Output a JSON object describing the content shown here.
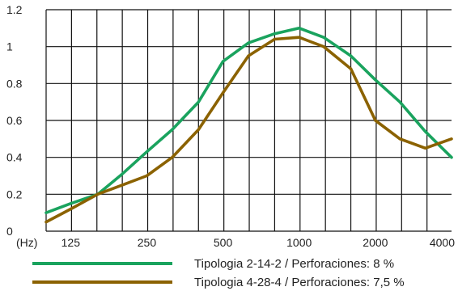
{
  "chart_data": {
    "type": "line",
    "x_unit_label": "(Hz)",
    "x_ticks": [
      "125",
      "250",
      "500",
      "1000",
      "2000",
      "4000"
    ],
    "x_scale": "log2",
    "xlim": [
      100,
      4000
    ],
    "ylim": [
      0,
      1.2
    ],
    "y_ticks": [
      "0",
      "0.2",
      "0.4",
      "0.6",
      "0.8",
      "1",
      "1.2"
    ],
    "grid": true,
    "legend_placement": "bottom",
    "series": [
      {
        "name": "Tipologia 2-14-2  / Perforaciones: 8 %",
        "color": "#1aa35e",
        "x": [
          100,
          125,
          160,
          200,
          250,
          315,
          400,
          500,
          630,
          800,
          1000,
          1250,
          1600,
          2000,
          2500,
          3150,
          4000
        ],
        "y": [
          0.1,
          0.15,
          0.2,
          0.31,
          0.43,
          0.55,
          0.7,
          0.92,
          1.02,
          1.07,
          1.1,
          1.05,
          0.95,
          0.82,
          0.7,
          0.54,
          0.4
        ]
      },
      {
        "name": "Tipologia 4-28-4  / Perforaciones: 7,5 %",
        "color": "#8b6200",
        "x": [
          100,
          125,
          160,
          200,
          250,
          315,
          400,
          500,
          630,
          800,
          1000,
          1250,
          1600,
          2000,
          2500,
          3150,
          4000
        ],
        "y": [
          0.05,
          0.12,
          0.2,
          0.25,
          0.3,
          0.4,
          0.55,
          0.75,
          0.95,
          1.04,
          1.05,
          1.0,
          0.88,
          0.6,
          0.5,
          0.45,
          0.5
        ]
      }
    ]
  }
}
